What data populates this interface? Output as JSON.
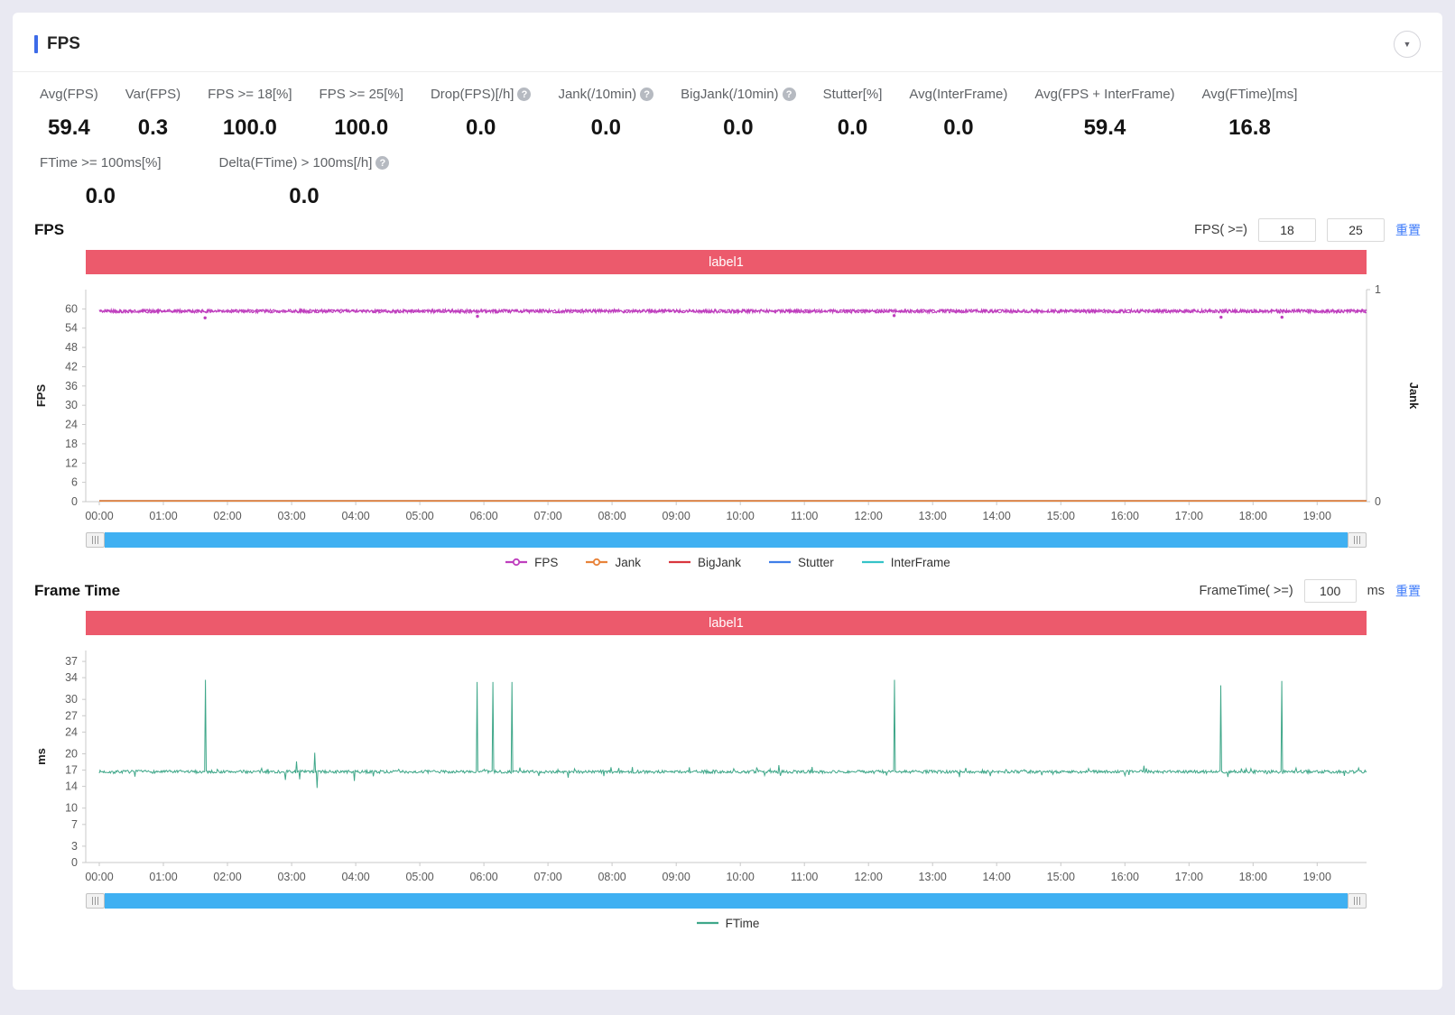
{
  "panel": {
    "title": "FPS",
    "collapse_icon": "▼"
  },
  "icons": {
    "help": "?"
  },
  "metrics": {
    "row1": [
      {
        "label": "Avg(FPS)",
        "value": "59.4",
        "help": false
      },
      {
        "label": "Var(FPS)",
        "value": "0.3",
        "help": false
      },
      {
        "label": "FPS >= 18[%]",
        "value": "100.0",
        "help": false
      },
      {
        "label": "FPS >= 25[%]",
        "value": "100.0",
        "help": false
      },
      {
        "label": "Drop(FPS)[/h]",
        "value": "0.0",
        "help": true
      },
      {
        "label": "Jank(/10min)",
        "value": "0.0",
        "help": true
      },
      {
        "label": "BigJank(/10min)",
        "value": "0.0",
        "help": true
      },
      {
        "label": "Stutter[%]",
        "value": "0.0",
        "help": false
      },
      {
        "label": "Avg(InterFrame)",
        "value": "0.0",
        "help": false
      },
      {
        "label": "Avg(FPS + InterFrame)",
        "value": "59.4",
        "help": false
      },
      {
        "label": "Avg(FTime)[ms]",
        "value": "16.8",
        "help": false
      }
    ],
    "row2": [
      {
        "label": "FTime >= 100ms[%]",
        "value": "0.0",
        "help": false
      },
      {
        "label": "Delta(FTime) > 100ms[/h]",
        "value": "0.0",
        "help": true
      }
    ]
  },
  "fps_section": {
    "title": "FPS",
    "filter_label": "FPS( >=)",
    "input1": "18",
    "input2": "25",
    "reset_label": "重置",
    "banner": "label1",
    "legend": [
      {
        "name": "FPS",
        "color": "#bf3fbe",
        "marker": "dot"
      },
      {
        "name": "Jank",
        "color": "#e8833a",
        "marker": "dot"
      },
      {
        "name": "BigJank",
        "color": "#d9363e",
        "marker": "line"
      },
      {
        "name": "Stutter",
        "color": "#3f7ee8",
        "marker": "line"
      },
      {
        "name": "InterFrame",
        "color": "#35c3c8",
        "marker": "line"
      }
    ]
  },
  "frametime_section": {
    "title": "Frame Time",
    "filter_label": "FrameTime( >=)",
    "input1": "100",
    "unit": "ms",
    "reset_label": "重置",
    "banner": "label1",
    "legend": [
      {
        "name": "FTime",
        "color": "#3fa789",
        "marker": "line"
      }
    ]
  },
  "chart_data": [
    {
      "id": "fps",
      "type": "line",
      "title": "label1",
      "ylabel": "FPS",
      "y2label": "Jank",
      "ylim": [
        0,
        66
      ],
      "yticks": [
        0,
        6,
        12,
        18,
        24,
        30,
        36,
        42,
        48,
        54,
        60
      ],
      "y2ticks": [
        0,
        1
      ],
      "x_range_hours": [
        0,
        19.77
      ],
      "xticks": [
        "00:00",
        "01:00",
        "02:00",
        "03:00",
        "04:00",
        "05:00",
        "06:00",
        "07:00",
        "08:00",
        "09:00",
        "10:00",
        "11:00",
        "12:00",
        "13:00",
        "14:00",
        "15:00",
        "16:00",
        "17:00",
        "18:00",
        "19:00"
      ],
      "grid": false,
      "legend_position": "bottom",
      "series": [
        {
          "name": "FPS",
          "color": "#bf3fbe",
          "baseline": 59.3,
          "noise": 0.55,
          "clamp": 60.1,
          "passes": 2,
          "seed": 42,
          "width": 1.1,
          "eventStyle": "dot",
          "events": [
            {
              "t": 1.65,
              "v": 57.2
            },
            {
              "t": 5.9,
              "v": 57.7
            },
            {
              "t": 12.4,
              "v": 57.9
            },
            {
              "t": 17.5,
              "v": 57.4
            },
            {
              "t": 18.45,
              "v": 57.4
            }
          ]
        },
        {
          "name": "Jank",
          "color": "#e8833a",
          "flat": 0
        },
        {
          "name": "BigJank",
          "color": "#d9363e",
          "flat": 0
        },
        {
          "name": "Stutter",
          "color": "#3f7ee8",
          "flat": 0
        },
        {
          "name": "InterFrame",
          "color": "#35c3c8",
          "flat": 0
        }
      ]
    },
    {
      "id": "frametime",
      "type": "line",
      "title": "label1",
      "ylabel": "ms",
      "ylim": [
        0,
        39
      ],
      "yticks": [
        0,
        3,
        7,
        10,
        14,
        17,
        20,
        24,
        27,
        30,
        34,
        37
      ],
      "x_range_hours": [
        0,
        19.77
      ],
      "xticks": [
        "00:00",
        "01:00",
        "02:00",
        "03:00",
        "04:00",
        "05:00",
        "06:00",
        "07:00",
        "08:00",
        "09:00",
        "10:00",
        "11:00",
        "12:00",
        "13:00",
        "14:00",
        "15:00",
        "16:00",
        "17:00",
        "18:00",
        "19:00"
      ],
      "grid": false,
      "legend_position": "bottom",
      "series": [
        {
          "name": "FTime",
          "color": "#3fa789",
          "baseline": 16.7,
          "noise": 0.28,
          "seed": 7,
          "width": 1,
          "jitter": {
            "p": 0.05,
            "amp": 0.8
          },
          "eventStyle": "line",
          "events": [
            {
              "t": 1.65,
              "v": 33.6
            },
            {
              "t": 2.9,
              "v": 15.2
            },
            {
              "t": 3.08,
              "v": 18.6
            },
            {
              "t": 3.12,
              "v": 15.3
            },
            {
              "t": 3.36,
              "v": 20.2
            },
            {
              "t": 3.4,
              "v": 13.7
            },
            {
              "t": 3.98,
              "v": 15.0
            },
            {
              "t": 5.9,
              "v": 33.2
            },
            {
              "t": 6.14,
              "v": 33.2
            },
            {
              "t": 6.44,
              "v": 33.2
            },
            {
              "t": 7.32,
              "v": 15.6
            },
            {
              "t": 10.6,
              "v": 17.9
            },
            {
              "t": 12.4,
              "v": 33.6
            },
            {
              "t": 13.9,
              "v": 15.9
            },
            {
              "t": 16.3,
              "v": 17.8
            },
            {
              "t": 17.5,
              "v": 32.6
            },
            {
              "t": 18.45,
              "v": 33.4
            }
          ]
        }
      ]
    }
  ]
}
